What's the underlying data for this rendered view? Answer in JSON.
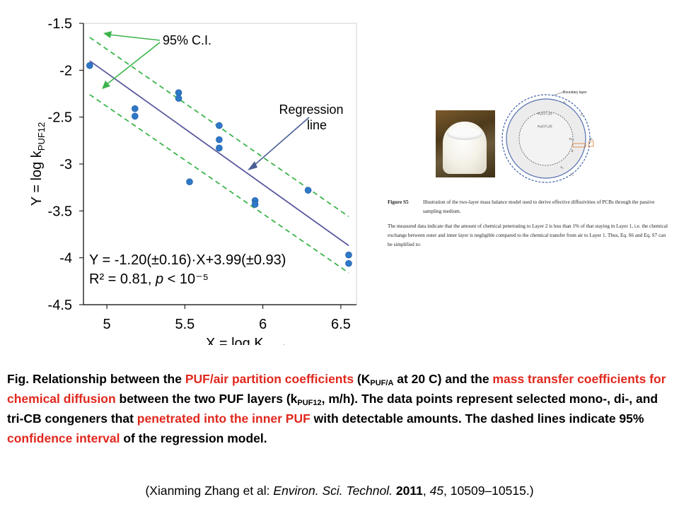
{
  "chart_data": {
    "type": "scatter",
    "xlabel": "X = log K",
    "xlabel_sub": "PUF/A",
    "ylabel": "Y = log k",
    "ylabel_sub": "PUF12",
    "xlim": [
      4.85,
      6.6
    ],
    "ylim": [
      -4.5,
      -1.5
    ],
    "xticks": [
      5,
      5.5,
      6,
      6.5
    ],
    "xtick_labels": [
      "5",
      "5.5",
      "6",
      "6.5"
    ],
    "yticks": [
      -1.5,
      -2,
      -2.5,
      -3,
      -3.5,
      -4,
      -4.5
    ],
    "ytick_labels": [
      "-1.5",
      "-2",
      "-2.5",
      "-3",
      "-3.5",
      "-4",
      "-4.5"
    ],
    "points": [
      {
        "x": 4.89,
        "y": -1.95
      },
      {
        "x": 5.18,
        "y": -2.41
      },
      {
        "x": 5.18,
        "y": -2.49
      },
      {
        "x": 5.46,
        "y": -2.24
      },
      {
        "x": 5.46,
        "y": -2.3
      },
      {
        "x": 5.53,
        "y": -3.19
      },
      {
        "x": 5.72,
        "y": -2.59
      },
      {
        "x": 5.72,
        "y": -2.74
      },
      {
        "x": 5.72,
        "y": -2.83
      },
      {
        "x": 5.95,
        "y": -3.39
      },
      {
        "x": 5.95,
        "y": -3.43
      },
      {
        "x": 6.29,
        "y": -3.28
      },
      {
        "x": 6.55,
        "y": -3.97
      },
      {
        "x": 6.55,
        "y": -4.06
      }
    ],
    "regression": {
      "x": [
        4.89,
        6.55
      ],
      "y": [
        -1.9,
        -3.87
      ]
    },
    "ci_upper": {
      "x": [
        4.89,
        6.55
      ],
      "y": [
        -1.65,
        -3.56
      ]
    },
    "ci_lower": {
      "x": [
        4.89,
        6.55
      ],
      "y": [
        -2.26,
        -4.16
      ]
    },
    "annotations": {
      "ci_label": "95% C.I.",
      "regression_label_line1": "Regression",
      "regression_label_line2": "line",
      "equation": "Y = -1.20(±0.16)·X+3.99(±0.93)",
      "r2_prefix": "R² = 0.81, ",
      "r2_p": "p",
      "r2_suffix": " < 10⁻⁵"
    },
    "colors": {
      "points": "#2f78c8",
      "regression": "#5a5a9e",
      "ci": "#3cb44b",
      "arrow": "#4a5f93"
    },
    "grid": false,
    "legend": "none"
  },
  "inset": {
    "figure_label": "Figure S5",
    "figure_caption": "Illustration of the two-layer mass balance model used to derive effective diffusivities of PCBs through the passive sampling medium.",
    "body_text": "The measured data indicate that the amount of chemical penetrating to Layer 2 is less than 1% of that staying in Layer 1, i.e. the chemical exchange between outer and inner layer is negligible compared to the chemical transfer from air to Layer 1. Thus, Eq. S6 and Eq. S7 can be simplified to:",
    "diagram_labels": {
      "boundary_layer": "Boundary layer",
      "layer1": "m₁(t) C₁(t)",
      "layer2": "m₂(t) C₂(t)",
      "ca": "Cₐ",
      "d12": "D₁₂",
      "delta": "δ",
      "a1": "A₁",
      "a2": "A₂",
      "a3": "A₃",
      "da": "Dₐ"
    }
  },
  "caption": {
    "fig_prefix": "Fig. Relationship between the ",
    "term1": "PUF/air partition coefficients",
    "part2a": " (K",
    "sub1": "PUF/A",
    "part2b": " at 20 C) and the ",
    "term2": "mass transfer coefficients for chemical diffusion",
    "part3a": " between the two PUF layers (k",
    "sub2": "PUF12",
    "part3b": ", m/h). The data points represent selected mono-, di-, and tri-CB congeners that ",
    "term3": "penetrated into the inner PUF",
    "part4": " with detectable amounts. The dashed lines indicate 95% ",
    "term4": "confidence interval",
    "part5": " of the regression model."
  },
  "citation": {
    "open": "(Xianming Zhang et al: ",
    "journal": "Environ. Sci. Technol.",
    "space": " ",
    "year": "2011",
    "sep": ", ",
    "volume": "45",
    "pages": ", 10509–10515.)"
  }
}
